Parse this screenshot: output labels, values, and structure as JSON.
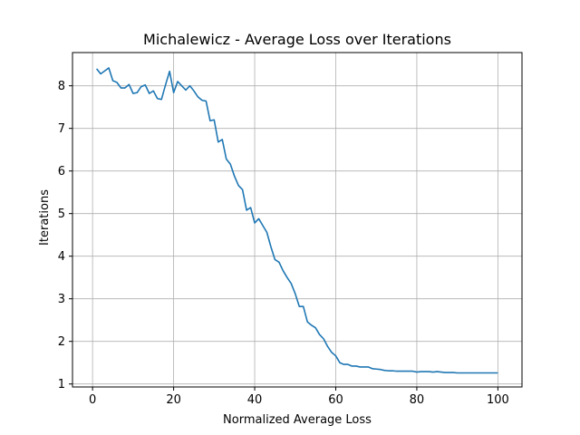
{
  "chart_data": {
    "type": "line",
    "title": "Michalewicz - Average Loss over Iterations",
    "xlabel": "Normalized Average Loss",
    "ylabel": "Iterations",
    "xlim": [
      -4.95,
      105.95
    ],
    "ylim": [
      0.93,
      8.78
    ],
    "xticks": [
      0,
      20,
      40,
      60,
      80,
      100
    ],
    "yticks": [
      1,
      2,
      3,
      4,
      5,
      6,
      7,
      8
    ],
    "grid": true,
    "colors": {
      "line": "#1f77b4",
      "grid": "#b0b0b0",
      "axis": "#000000"
    },
    "series": [
      {
        "x": [
          1,
          2,
          3,
          4,
          5,
          6,
          7,
          8,
          9,
          10,
          11,
          12,
          13,
          14,
          15,
          16,
          17,
          18,
          19,
          20,
          21,
          22,
          23,
          24,
          25,
          26,
          27,
          28,
          29,
          30,
          31,
          32,
          33,
          34,
          35,
          36,
          37,
          38,
          39,
          40,
          41,
          42,
          43,
          44,
          45,
          46,
          47,
          48,
          49,
          50,
          51,
          52,
          53,
          54,
          55,
          56,
          57,
          58,
          59,
          60,
          61,
          62,
          63,
          64,
          65,
          66,
          67,
          68,
          69,
          70,
          71,
          72,
          73,
          74,
          75,
          76,
          77,
          78,
          79,
          80,
          81,
          82,
          83,
          84,
          85,
          86,
          87,
          88,
          89,
          90,
          91,
          92,
          93,
          94,
          95,
          96,
          97,
          98,
          99,
          100
        ],
        "values": [
          8.4,
          8.28,
          8.35,
          8.42,
          8.12,
          8.08,
          7.95,
          7.95,
          8.03,
          7.82,
          7.84,
          7.98,
          8.02,
          7.82,
          7.88,
          7.7,
          7.68,
          8.02,
          8.34,
          7.84,
          8.1,
          8.0,
          7.9,
          8.0,
          7.88,
          7.74,
          7.66,
          7.64,
          7.18,
          7.2,
          6.68,
          6.74,
          6.28,
          6.16,
          5.88,
          5.66,
          5.56,
          5.08,
          5.14,
          4.78,
          4.88,
          4.72,
          4.56,
          4.22,
          3.92,
          3.86,
          3.66,
          3.5,
          3.36,
          3.12,
          2.82,
          2.82,
          2.46,
          2.38,
          2.32,
          2.16,
          2.06,
          1.88,
          1.74,
          1.66,
          1.5,
          1.46,
          1.46,
          1.42,
          1.42,
          1.4,
          1.4,
          1.4,
          1.36,
          1.35,
          1.34,
          1.32,
          1.31,
          1.31,
          1.3,
          1.3,
          1.3,
          1.3,
          1.3,
          1.28,
          1.29,
          1.29,
          1.29,
          1.28,
          1.29,
          1.28,
          1.27,
          1.27,
          1.27,
          1.26,
          1.26,
          1.26,
          1.26,
          1.26,
          1.26,
          1.26,
          1.26,
          1.26,
          1.26,
          1.26
        ]
      }
    ]
  }
}
